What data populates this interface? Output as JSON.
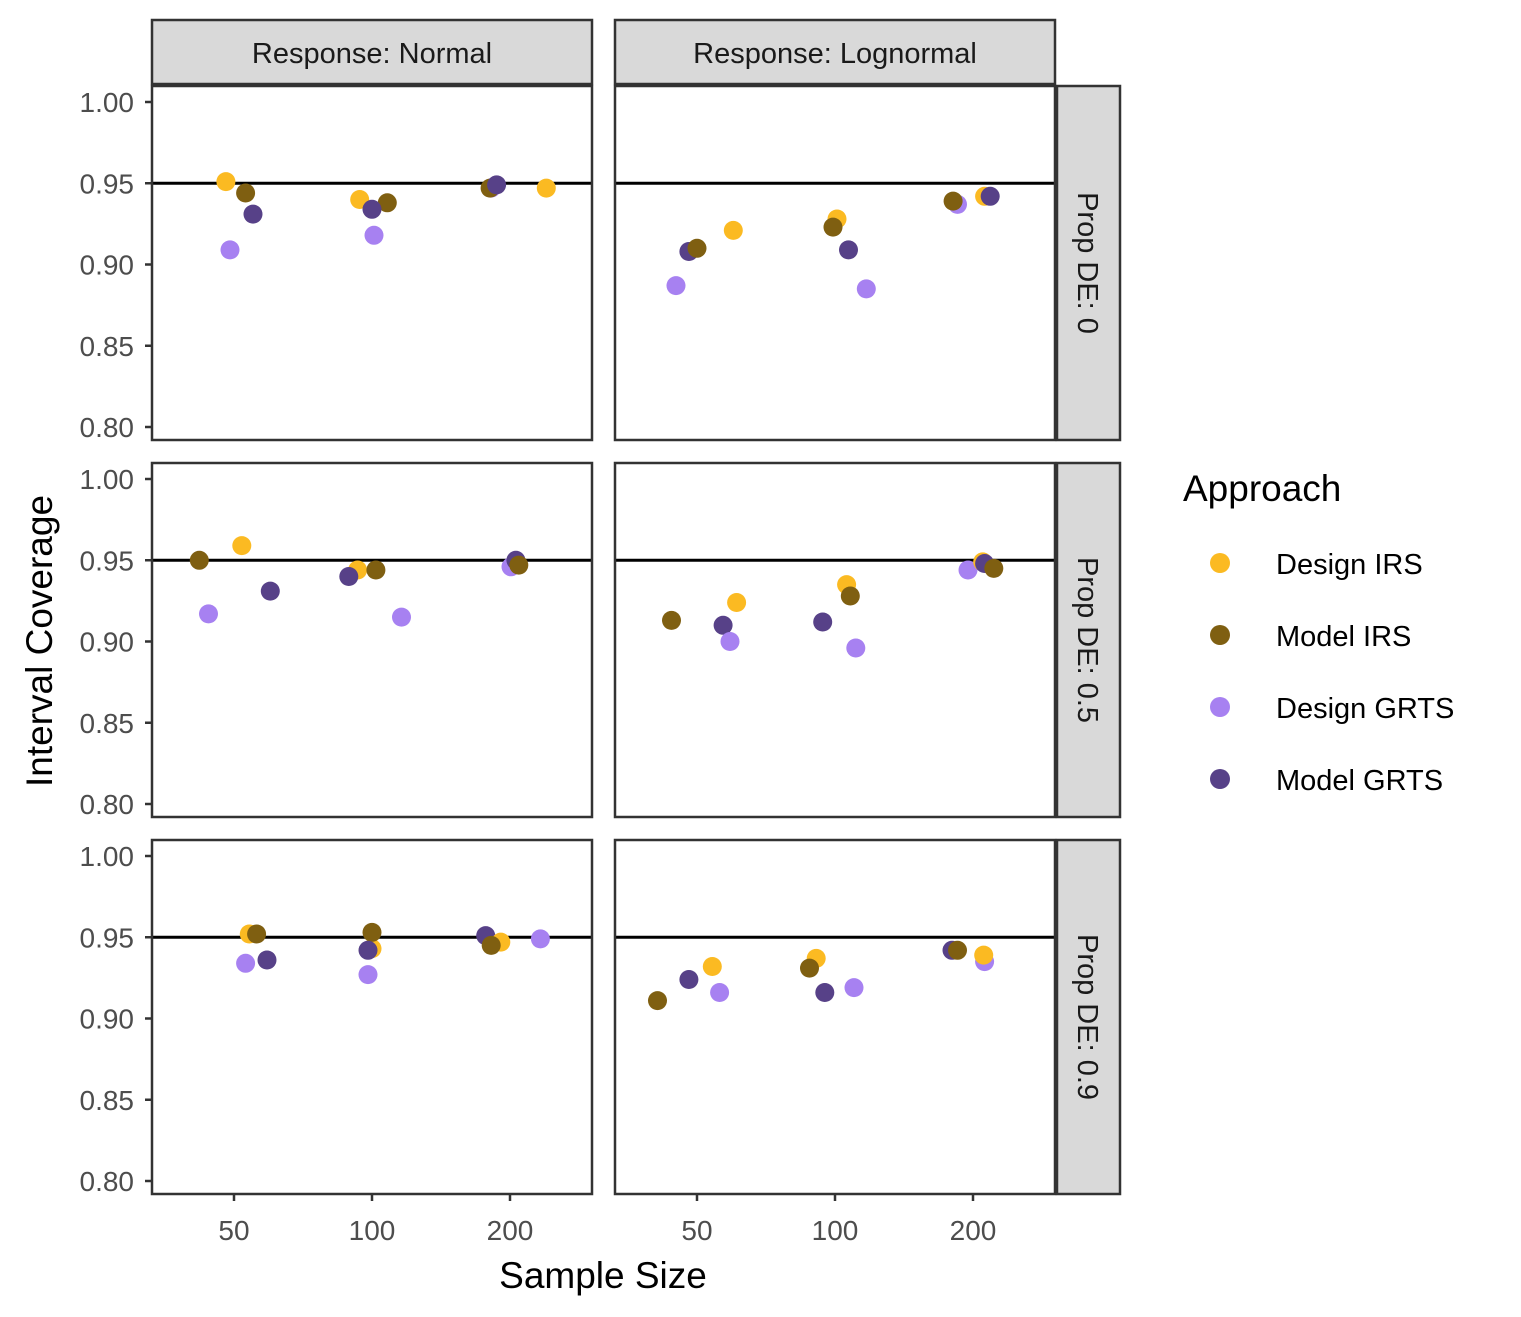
{
  "chart_data": {
    "type": "scatter",
    "xlabel": "Sample Size",
    "ylabel": "Interval Coverage",
    "x_scale": "log",
    "x_ticks": [
      50,
      100,
      200
    ],
    "x_tick_labels": [
      "50",
      "100",
      "200"
    ],
    "ylim": [
      0.8,
      1.0
    ],
    "y_ticks": [
      0.8,
      0.85,
      0.9,
      0.95,
      1.0
    ],
    "y_tick_labels": [
      "0.80",
      "0.85",
      "0.90",
      "0.95",
      "1.00"
    ],
    "reference_line": 0.95,
    "grid": false,
    "legend": {
      "title": "Approach",
      "position": "right",
      "entries": [
        {
          "name": "Design IRS",
          "color": "#FBBA22"
        },
        {
          "name": "Model IRS",
          "color": "#7F5F11"
        },
        {
          "name": "Design GRTS",
          "color": "#A781F1"
        },
        {
          "name": "Model GRTS",
          "color": "#574188"
        }
      ]
    },
    "col_strips": [
      "Response: Normal",
      "Response: Lognormal"
    ],
    "row_strips": [
      "Prop DE: 0",
      "Prop DE: 0.5",
      "Prop DE: 0.9"
    ],
    "panels": [
      {
        "row": 0,
        "col": 0,
        "points": [
          {
            "series": "Design IRS",
            "x": 48,
            "y": 0.951
          },
          {
            "series": "Model IRS",
            "x": 53,
            "y": 0.944
          },
          {
            "series": "Model GRTS",
            "x": 55,
            "y": 0.931
          },
          {
            "series": "Design GRTS",
            "x": 49,
            "y": 0.909
          },
          {
            "series": "Design IRS",
            "x": 94,
            "y": 0.94
          },
          {
            "series": "Model IRS",
            "x": 108,
            "y": 0.938
          },
          {
            "series": "Model GRTS",
            "x": 100,
            "y": 0.934
          },
          {
            "series": "Design GRTS",
            "x": 101,
            "y": 0.918
          },
          {
            "series": "Design GRTS",
            "x": 182,
            "y": 0.947
          },
          {
            "series": "Model IRS",
            "x": 181,
            "y": 0.947
          },
          {
            "series": "Model GRTS",
            "x": 187,
            "y": 0.949
          },
          {
            "series": "Design IRS",
            "x": 240,
            "y": 0.947
          }
        ]
      },
      {
        "row": 0,
        "col": 1,
        "points": [
          {
            "series": "Design GRTS",
            "x": 45,
            "y": 0.887
          },
          {
            "series": "Model GRTS",
            "x": 48,
            "y": 0.908
          },
          {
            "series": "Model IRS",
            "x": 50,
            "y": 0.91
          },
          {
            "series": "Design IRS",
            "x": 60,
            "y": 0.921
          },
          {
            "series": "Design IRS",
            "x": 101,
            "y": 0.928
          },
          {
            "series": "Model IRS",
            "x": 99,
            "y": 0.923
          },
          {
            "series": "Model GRTS",
            "x": 107,
            "y": 0.909
          },
          {
            "series": "Design GRTS",
            "x": 117,
            "y": 0.885
          },
          {
            "series": "Design GRTS",
            "x": 185,
            "y": 0.937
          },
          {
            "series": "Model IRS",
            "x": 181,
            "y": 0.939
          },
          {
            "series": "Design IRS",
            "x": 212,
            "y": 0.942
          },
          {
            "series": "Model GRTS",
            "x": 218,
            "y": 0.942
          }
        ]
      },
      {
        "row": 1,
        "col": 0,
        "points": [
          {
            "series": "Model IRS",
            "x": 42,
            "y": 0.95
          },
          {
            "series": "Design IRS",
            "x": 52,
            "y": 0.959
          },
          {
            "series": "Design GRTS",
            "x": 44,
            "y": 0.917
          },
          {
            "series": "Model GRTS",
            "x": 60,
            "y": 0.931
          },
          {
            "series": "Design IRS",
            "x": 93,
            "y": 0.944
          },
          {
            "series": "Model GRTS",
            "x": 89,
            "y": 0.94
          },
          {
            "series": "Model IRS",
            "x": 102,
            "y": 0.944
          },
          {
            "series": "Design GRTS",
            "x": 116,
            "y": 0.915
          },
          {
            "series": "Design GRTS",
            "x": 201,
            "y": 0.946
          },
          {
            "series": "Model GRTS",
            "x": 206,
            "y": 0.95
          },
          {
            "series": "Model IRS",
            "x": 209,
            "y": 0.947
          }
        ]
      },
      {
        "row": 1,
        "col": 1,
        "points": [
          {
            "series": "Model IRS",
            "x": 44,
            "y": 0.913
          },
          {
            "series": "Model GRTS",
            "x": 57,
            "y": 0.91
          },
          {
            "series": "Design GRTS",
            "x": 59,
            "y": 0.9
          },
          {
            "series": "Design IRS",
            "x": 61,
            "y": 0.924
          },
          {
            "series": "Model GRTS",
            "x": 94,
            "y": 0.912
          },
          {
            "series": "Design IRS",
            "x": 106,
            "y": 0.935
          },
          {
            "series": "Model IRS",
            "x": 108,
            "y": 0.928
          },
          {
            "series": "Design GRTS",
            "x": 111,
            "y": 0.896
          },
          {
            "series": "Design GRTS",
            "x": 195,
            "y": 0.944
          },
          {
            "series": "Design IRS",
            "x": 210,
            "y": 0.949
          },
          {
            "series": "Model GRTS",
            "x": 212,
            "y": 0.948
          },
          {
            "series": "Model IRS",
            "x": 222,
            "y": 0.945
          }
        ]
      },
      {
        "row": 2,
        "col": 0,
        "points": [
          {
            "series": "Design IRS",
            "x": 54,
            "y": 0.952
          },
          {
            "series": "Model IRS",
            "x": 56,
            "y": 0.952
          },
          {
            "series": "Design GRTS",
            "x": 53,
            "y": 0.934
          },
          {
            "series": "Model GRTS",
            "x": 59,
            "y": 0.936
          },
          {
            "series": "Design IRS",
            "x": 100,
            "y": 0.943
          },
          {
            "series": "Model IRS",
            "x": 100,
            "y": 0.953
          },
          {
            "series": "Model GRTS",
            "x": 98,
            "y": 0.942
          },
          {
            "series": "Design GRTS",
            "x": 98,
            "y": 0.927
          },
          {
            "series": "Model GRTS",
            "x": 177,
            "y": 0.951
          },
          {
            "series": "Design IRS",
            "x": 191,
            "y": 0.947
          },
          {
            "series": "Model IRS",
            "x": 182,
            "y": 0.945
          },
          {
            "series": "Design GRTS",
            "x": 233,
            "y": 0.949
          }
        ]
      },
      {
        "row": 2,
        "col": 1,
        "points": [
          {
            "series": "Model IRS",
            "x": 41,
            "y": 0.911
          },
          {
            "series": "Model GRTS",
            "x": 48,
            "y": 0.924
          },
          {
            "series": "Design IRS",
            "x": 54,
            "y": 0.932
          },
          {
            "series": "Design GRTS",
            "x": 56,
            "y": 0.916
          },
          {
            "series": "Design IRS",
            "x": 91,
            "y": 0.937
          },
          {
            "series": "Model IRS",
            "x": 88,
            "y": 0.931
          },
          {
            "series": "Model GRTS",
            "x": 95,
            "y": 0.916
          },
          {
            "series": "Design GRTS",
            "x": 110,
            "y": 0.919
          },
          {
            "series": "Model GRTS",
            "x": 180,
            "y": 0.942
          },
          {
            "series": "Model IRS",
            "x": 185,
            "y": 0.942
          },
          {
            "series": "Design GRTS",
            "x": 212,
            "y": 0.935
          },
          {
            "series": "Design IRS",
            "x": 211,
            "y": 0.939
          }
        ]
      }
    ]
  }
}
